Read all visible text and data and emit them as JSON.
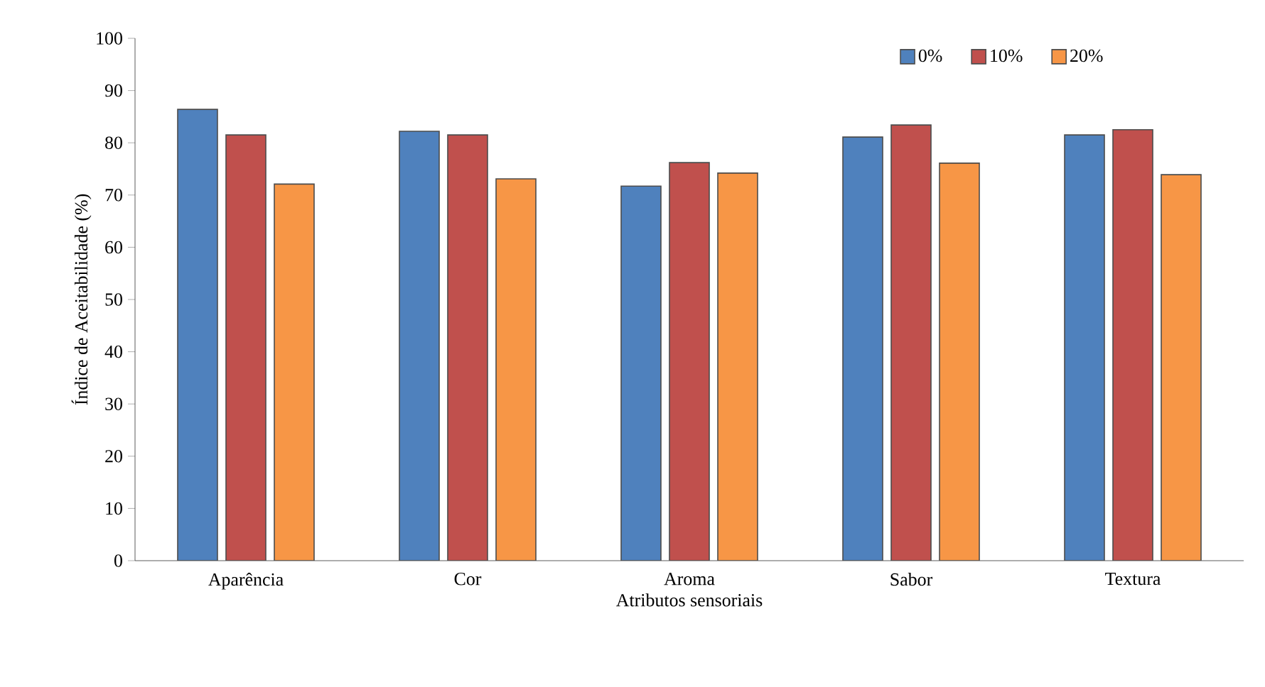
{
  "chart_data": {
    "type": "bar",
    "xlabel": "Atributos sensoriais",
    "ylabel": "Índice de Aceitabilidade (%)",
    "categories": [
      "Aparência",
      "Cor",
      "Aroma",
      "Sabor",
      "Textura"
    ],
    "series": [
      {
        "name": "0%",
        "color": "#4f81bd",
        "values": [
          86.4,
          82.2,
          71.7,
          81.1,
          81.5
        ]
      },
      {
        "name": "10%",
        "color": "#c0504d",
        "values": [
          81.5,
          81.5,
          76.2,
          83.4,
          82.5
        ]
      },
      {
        "name": "20%",
        "color": "#f79646",
        "values": [
          72.1,
          73.1,
          74.2,
          76.1,
          73.9
        ]
      }
    ],
    "ylim": [
      0,
      100
    ],
    "yticks": [
      0,
      10,
      20,
      30,
      40,
      50,
      60,
      70,
      80,
      90,
      100
    ],
    "grid": false,
    "legend": "top right"
  }
}
